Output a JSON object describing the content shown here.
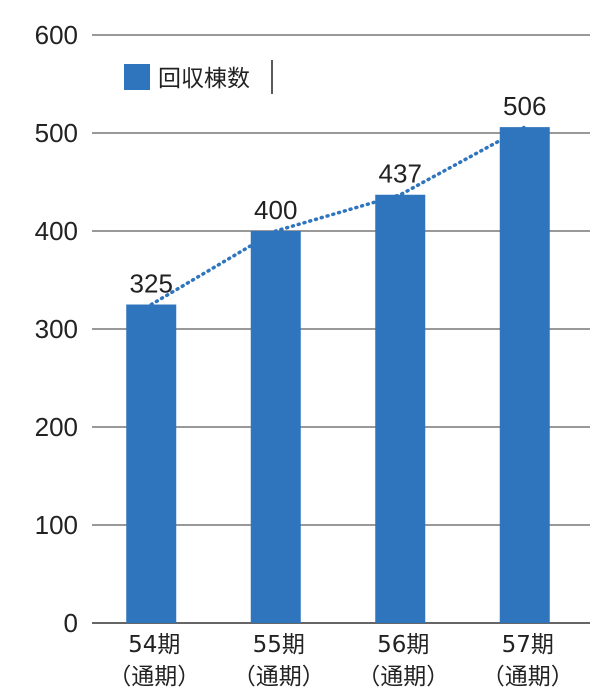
{
  "chart_data": {
    "type": "bar",
    "categories": [
      [
        "54期",
        "（通期）"
      ],
      [
        "55期",
        "（通期）"
      ],
      [
        "56期",
        "（通期）"
      ],
      [
        "57期",
        "（通期）"
      ]
    ],
    "series": [
      {
        "name": "回収棟数",
        "values": [
          325,
          400,
          437,
          506
        ],
        "color": "#2f75be"
      }
    ],
    "data_labels": [
      "325",
      "400",
      "437",
      "506"
    ],
    "trendline": {
      "style": "dotted",
      "color": "#2f75be"
    },
    "ylim": [
      0,
      600
    ],
    "yticks": [
      0,
      100,
      200,
      300,
      400,
      500,
      600
    ],
    "grid": true,
    "legend_position": "top-left",
    "title": "",
    "xlabel": "",
    "ylabel": ""
  }
}
